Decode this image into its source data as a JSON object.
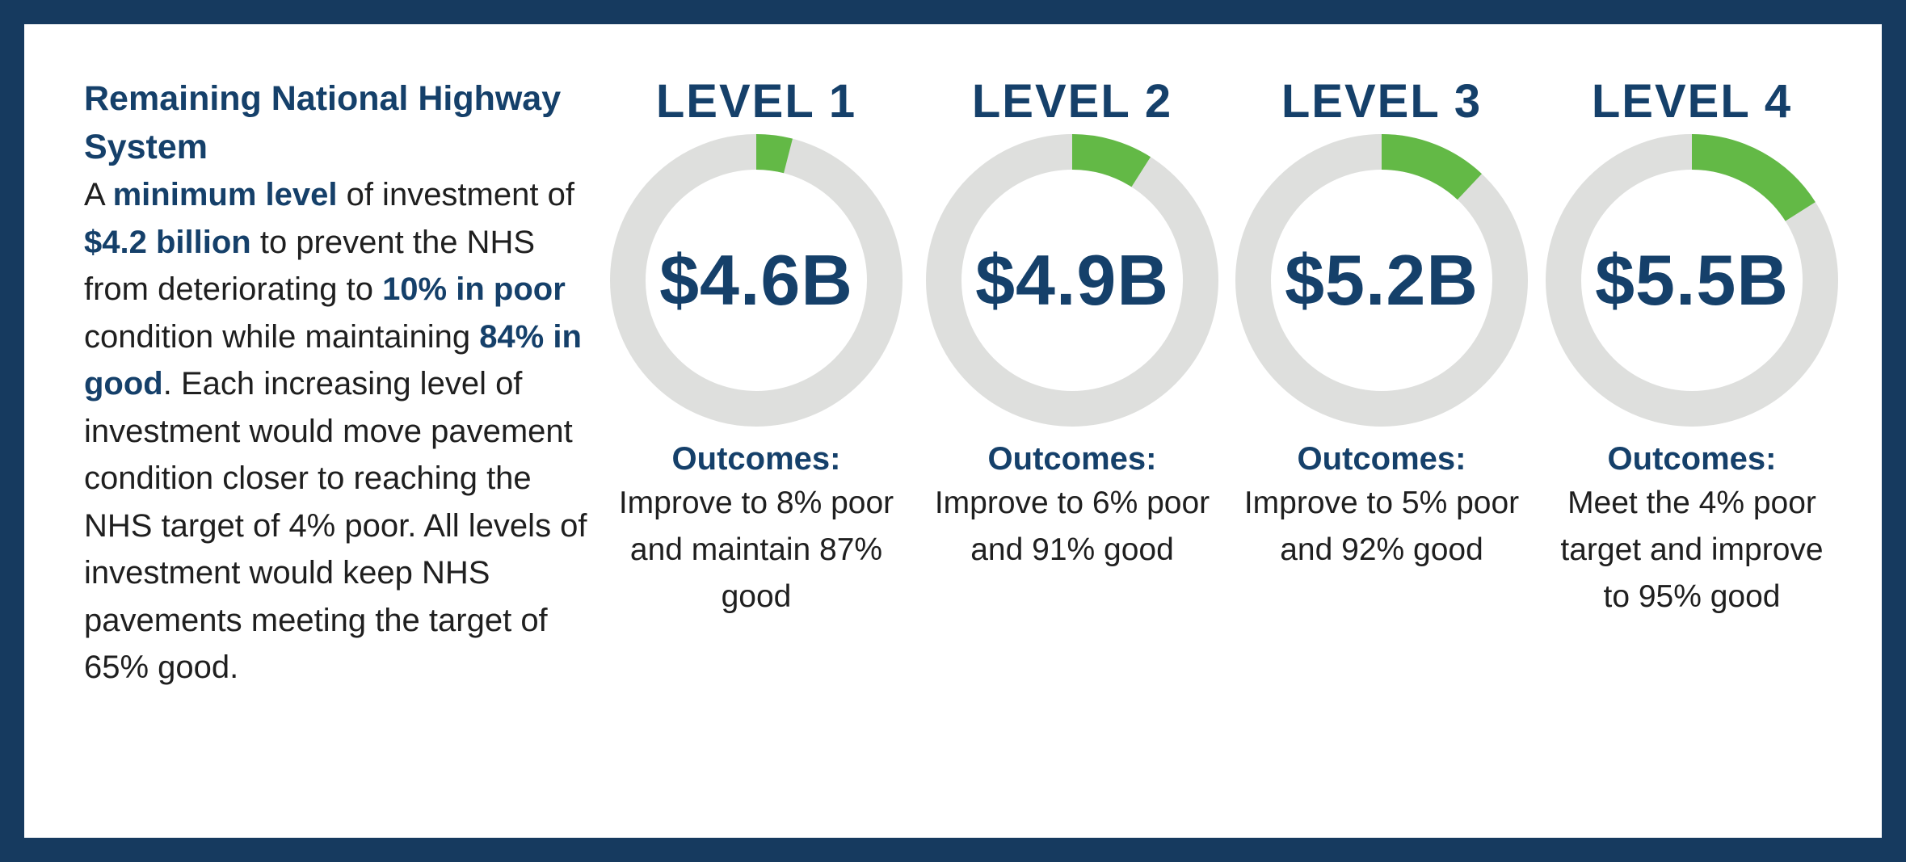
{
  "intro": {
    "title": "Remaining National Highway System",
    "body": [
      {
        "text": "A ",
        "bold": false
      },
      {
        "text": "minimum level",
        "bold": true
      },
      {
        "text": " of investment of ",
        "bold": false
      },
      {
        "text": "$4.2 billion",
        "bold": true
      },
      {
        "text": " to prevent the NHS from deteriorating to ",
        "bold": false
      },
      {
        "text": "10% in poor",
        "bold": true
      },
      {
        "text": " condition while maintaining ",
        "bold": false
      },
      {
        "text": "84% in good",
        "bold": true
      },
      {
        "text": ". Each increasing level of investment would move pavement condition closer to reaching the NHS target of 4% poor. All levels of investment would keep NHS pavements meeting the target of 65% good.",
        "bold": false
      }
    ]
  },
  "colors": {
    "navy": "#15406a",
    "ring_track": "#dedfdd",
    "ring_fill": "#63b946",
    "frame": "#163a5f"
  },
  "chart_data": {
    "type": "donut",
    "categories": [
      "LEVEL 1",
      "LEVEL 2",
      "LEVEL 3",
      "LEVEL 4"
    ],
    "values_label": [
      "$4.6B",
      "$4.9B",
      "$5.2B",
      "$5.5B"
    ],
    "values": [
      4.6,
      4.9,
      5.2,
      5.5
    ],
    "fill_fraction": [
      0.04,
      0.09,
      0.12,
      0.16
    ],
    "outcomes_label": "Outcomes:",
    "outcomes": [
      "Improve to 8% poor and maintain 87% good",
      "Improve to 6% poor and 91% good",
      "Improve to 5% poor and 92% good",
      "Meet the 4% poor target and improve to 95% good"
    ]
  }
}
